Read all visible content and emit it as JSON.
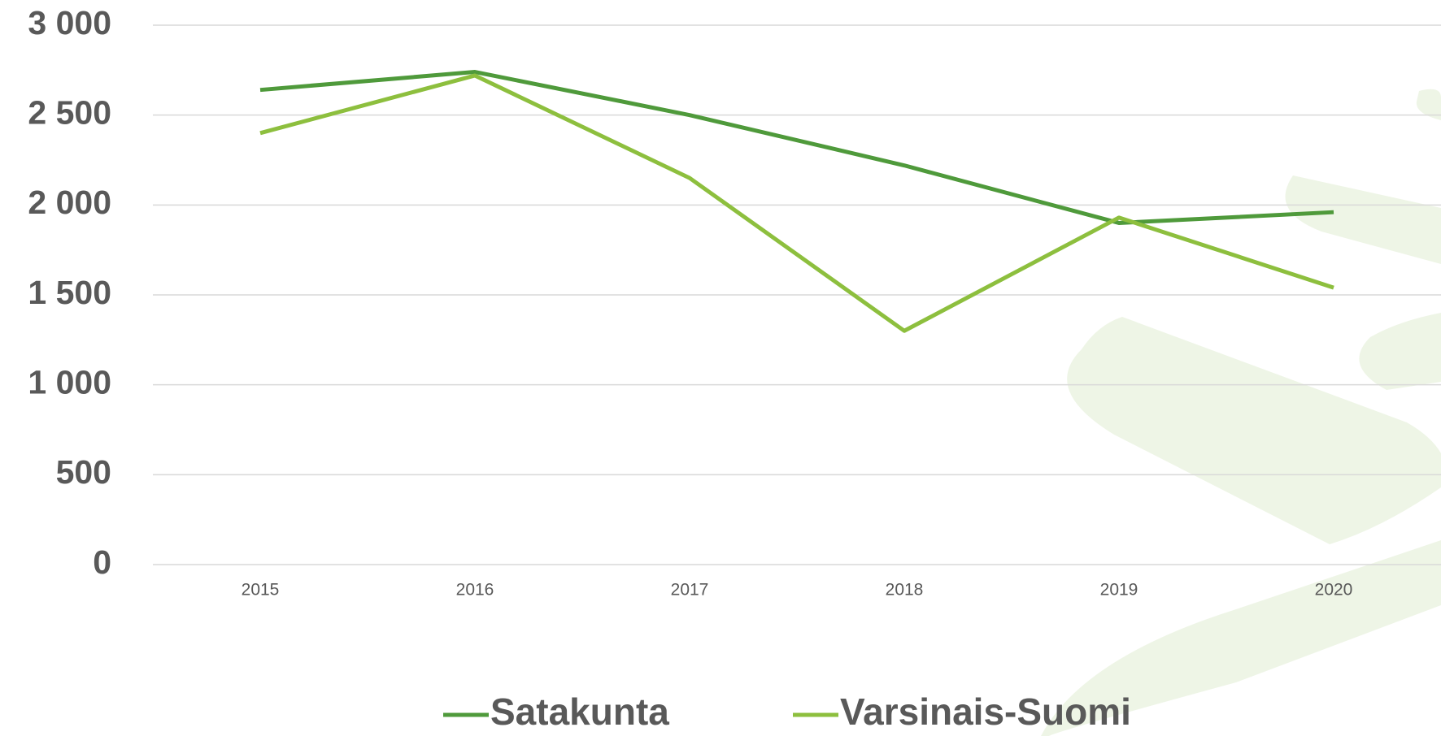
{
  "chart_data": {
    "type": "line",
    "categories": [
      "2015",
      "2016",
      "2017",
      "2018",
      "2019",
      "2020"
    ],
    "series": [
      {
        "name": "Satakunta",
        "color": "#4f9a3b",
        "values": [
          2640,
          2740,
          2500,
          2220,
          1900,
          1960
        ]
      },
      {
        "name": "Varsinais-Suomi",
        "color": "#8dbf3e",
        "values": [
          2400,
          2720,
          2150,
          1300,
          1930,
          1540
        ]
      }
    ],
    "ylim": [
      0,
      3000
    ],
    "yticks": [
      0,
      500,
      {
        "value": 1000,
        "label": "1 000"
      },
      {
        "value": 1500,
        "label": "1 500"
      },
      {
        "value": 2000,
        "label": "2 000"
      },
      {
        "value": 2500,
        "label": "2 500"
      },
      {
        "value": 3000,
        "label": "3 000"
      }
    ],
    "grid": true,
    "legend": "bottom"
  }
}
